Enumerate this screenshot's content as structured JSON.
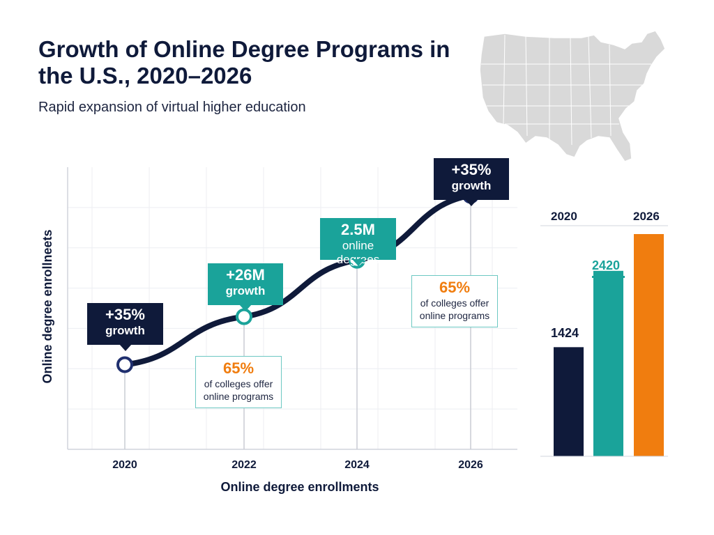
{
  "title": "Growth of Online Degree Programs in the U.S., 2020–2026",
  "subtitle": "Rapid expansion of virtual higher education",
  "colors": {
    "navy": "#0f1a3a",
    "teal": "#1aa39a",
    "orange": "#f07d0f",
    "map": "#d9d9d9"
  },
  "icons": {
    "map": "usa-map-icon"
  },
  "chart_data": [
    {
      "type": "line",
      "ylabel": "Online degree enrollneets",
      "xlabel": "Online degree enrollments",
      "x": [
        "2020",
        "2022",
        "2024",
        "2026"
      ],
      "ylim": [
        0,
        100
      ],
      "grid": true,
      "series": [
        {
          "values": [
            30,
            47,
            67,
            90
          ]
        }
      ],
      "annotations": [
        {
          "x": "2020",
          "big": "+35%",
          "small": "growth",
          "style": "dark"
        },
        {
          "x": "2022",
          "big": "+26M",
          "small": "growth",
          "style": "teal"
        },
        {
          "x": "2024",
          "big": "2.5M",
          "small": "online degrees",
          "style": "teal"
        },
        {
          "x": "2026",
          "big": "+35%",
          "small": "growth",
          "style": "dark"
        },
        {
          "x": "2022",
          "big": "65%",
          "small": "of colleges offer online programs",
          "style": "note"
        },
        {
          "x": "2024",
          "big": "65%",
          "small": "of colleges offer online programs",
          "style": "note"
        }
      ]
    },
    {
      "type": "bar",
      "series_labels": [
        "2020",
        "2026"
      ],
      "values": [
        1424,
        2420,
        2900
      ],
      "data_labels": [
        "1424",
        "2420",
        ""
      ],
      "colors": [
        "#0f1a3a",
        "#1aa39a",
        "#f07d0f"
      ],
      "ylim": [
        0,
        3000
      ]
    }
  ]
}
